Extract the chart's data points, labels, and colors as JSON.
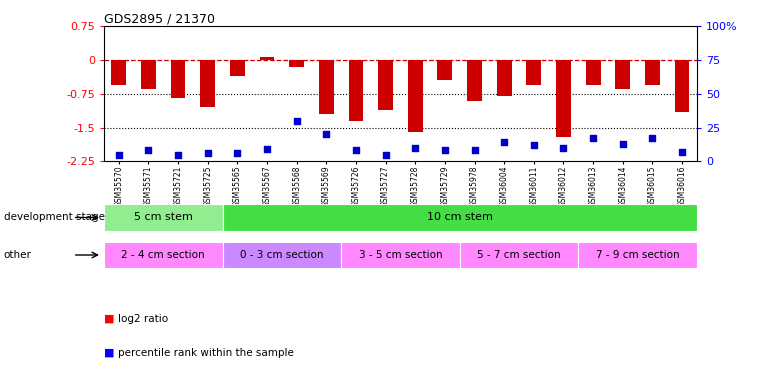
{
  "title": "GDS2895 / 21370",
  "samples": [
    "GSM35570",
    "GSM35571",
    "GSM35721",
    "GSM35725",
    "GSM35565",
    "GSM35567",
    "GSM35568",
    "GSM35569",
    "GSM35726",
    "GSM35727",
    "GSM35728",
    "GSM35729",
    "GSM35978",
    "GSM36004",
    "GSM36011",
    "GSM36012",
    "GSM36013",
    "GSM36014",
    "GSM36015",
    "GSM36016"
  ],
  "log2_ratio": [
    -0.55,
    -0.65,
    -0.85,
    -1.05,
    -0.35,
    0.07,
    -0.15,
    -1.2,
    -1.35,
    -1.1,
    -1.6,
    -0.45,
    -0.9,
    -0.8,
    -0.55,
    -1.72,
    -0.55,
    -0.65,
    -0.55,
    -1.15
  ],
  "percentile": [
    5,
    8,
    5,
    6,
    6,
    9,
    30,
    20,
    8,
    5,
    10,
    8,
    8,
    14,
    12,
    10,
    17,
    13,
    17,
    7
  ],
  "ylim_left": [
    -2.25,
    0.75
  ],
  "ylim_right": [
    0,
    100
  ],
  "hline_y": 0,
  "dotted_lines": [
    -0.75,
    -1.5
  ],
  "bar_color": "#cc0000",
  "dot_color": "#0000cc",
  "hline_color": "#cc0000",
  "background_color": "#ffffff",
  "left_yticks": [
    0.75,
    0,
    -0.75,
    -1.5,
    -2.25
  ],
  "right_yticks": [
    100,
    75,
    50,
    25,
    0
  ],
  "dev_stage_groups": [
    {
      "label": "5 cm stem",
      "start": 0,
      "end": 4,
      "color": "#90ee90"
    },
    {
      "label": "10 cm stem",
      "start": 4,
      "end": 20,
      "color": "#44dd44"
    }
  ],
  "other_groups": [
    {
      "label": "2 - 4 cm section",
      "start": 0,
      "end": 4,
      "color": "#ff88ff"
    },
    {
      "label": "0 - 3 cm section",
      "start": 4,
      "end": 8,
      "color": "#cc88ff"
    },
    {
      "label": "3 - 5 cm section",
      "start": 8,
      "end": 12,
      "color": "#ff88ff"
    },
    {
      "label": "5 - 7 cm section",
      "start": 12,
      "end": 16,
      "color": "#ff88ff"
    },
    {
      "label": "7 - 9 cm section",
      "start": 16,
      "end": 20,
      "color": "#ff88ff"
    }
  ],
  "dev_stage_label": "development stage",
  "other_label": "other",
  "legend_red": "log2 ratio",
  "legend_blue": "percentile rank within the sample"
}
